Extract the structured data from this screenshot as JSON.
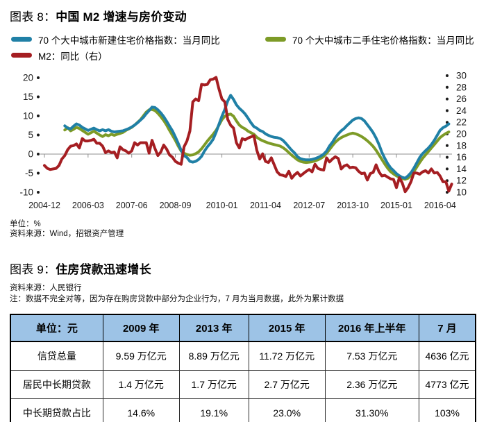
{
  "fig8": {
    "label": "图表 8：",
    "title": "中国 M2 增速与房价变动",
    "unit_note": "单位：%",
    "source_note": "资料来源：Wind，招银资产管理"
  },
  "fig9": {
    "label": "图表 9：",
    "title": "住房贷款迅速增长",
    "source_note": "资料来源：人民银行",
    "data_note": "注：数据不完全对等，因为存在购房贷款中部分为企业行为，7 月为当月数据，此外为累计数据"
  },
  "chart_data": [
    {
      "type": "line",
      "title": "中国 M2 增速与房价变动",
      "unit": "%",
      "grid": "zero-line-only",
      "x_tick_labels": [
        "2004-12",
        "2006-03",
        "2007-06",
        "2008-09",
        "2010-01",
        "2011-04",
        "2012-07",
        "2013-10",
        "2015-01",
        "2016-04"
      ],
      "left_axis": {
        "ticks": [
          20,
          15,
          10,
          5,
          0,
          -5,
          -10
        ],
        "range": [
          -10,
          20
        ]
      },
      "right_axis": {
        "ticks": [
          30,
          28,
          26,
          24,
          22,
          20,
          18,
          16,
          14,
          12,
          10
        ],
        "range": [
          10,
          30
        ]
      },
      "series": [
        {
          "name": "70 个大中城市新建住宅价格指数：当月同比",
          "color": "#2080A6",
          "axis": "left",
          "start_month": "2005-07",
          "monthly_values": [
            7.4,
            6.8,
            6.6,
            7.3,
            7.9,
            7.6,
            7.0,
            6.6,
            6.2,
            6.5,
            6.8,
            6.4,
            6.1,
            6.4,
            6.1,
            6.4,
            6.0,
            5.8,
            5.9,
            6.0,
            6.1,
            6.4,
            6.7,
            7.1,
            7.6,
            8.2,
            8.9,
            9.6,
            10.6,
            11.4,
            12.3,
            12.2,
            11.6,
            10.8,
            9.8,
            8.6,
            7.3,
            6.1,
            4.5,
            2.8,
            1.0,
            -0.4,
            -0.9,
            -1.9,
            -2.1,
            -1.9,
            -1.4,
            -0.6,
            0.8,
            1.9,
            2.8,
            3.9,
            5.7,
            7.8,
            9.9,
            11.7,
            13.9,
            15.4,
            14.3,
            12.9,
            12.0,
            11.3,
            10.5,
            9.4,
            8.2,
            7.2,
            6.8,
            6.2,
            5.9,
            5.3,
            4.9,
            4.6,
            4.4,
            4.3,
            4.1,
            3.6,
            2.8,
            1.9,
            1.0,
            0.3,
            -0.7,
            -1.2,
            -1.4,
            -1.5,
            -1.5,
            -1.4,
            -1.2,
            -0.9,
            -0.5,
            0.0,
            0.8,
            2.1,
            3.1,
            4.3,
            5.3,
            6.1,
            6.7,
            7.5,
            8.2,
            8.9,
            9.3,
            9.5,
            9.3,
            8.7,
            7.7,
            6.7,
            5.6,
            4.2,
            2.5,
            0.5,
            -1.1,
            -2.5,
            -3.6,
            -4.3,
            -5.1,
            -5.7,
            -6.1,
            -6.3,
            -5.7,
            -4.9,
            -3.7,
            -2.3,
            -0.9,
            0.1,
            0.9,
            1.6,
            2.5,
            3.6,
            4.9,
            6.2,
            6.9,
            7.3,
            7.9
          ]
        },
        {
          "name": "70 个大中城市二手住宅价格指数：当月同比",
          "color": "#7D9B27",
          "axis": "left",
          "start_month": "2005-07",
          "monthly_values": [
            6.3,
            6.9,
            6.1,
            6.5,
            7.0,
            6.7,
            6.2,
            5.7,
            5.2,
            5.6,
            6.0,
            5.5,
            5.0,
            4.6,
            5.1,
            4.8,
            5.2,
            4.9,
            5.2,
            5.4,
            5.7,
            6.2,
            6.6,
            7.0,
            7.6,
            8.3,
            9.0,
            10.0,
            11.0,
            11.6,
            11.7,
            11.4,
            10.7,
            9.8,
            8.8,
            7.6,
            6.2,
            4.9,
            3.6,
            2.1,
            0.8,
            0.2,
            -0.1,
            -0.3,
            -0.2,
            0.1,
            0.6,
            1.4,
            2.4,
            3.4,
            4.3,
            5.2,
            6.2,
            7.6,
            9.0,
            9.9,
            10.3,
            10.5,
            9.9,
            8.7,
            7.6,
            7.0,
            6.6,
            6.0,
            5.6,
            5.2,
            4.4,
            3.9,
            3.5,
            3.2,
            2.9,
            2.7,
            2.5,
            2.3,
            2.1,
            1.7,
            1.1,
            0.4,
            -0.3,
            -0.9,
            -1.5,
            -1.9,
            -2.1,
            -2.2,
            -2.1,
            -2.0,
            -1.8,
            -1.5,
            -1.1,
            -0.6,
            0.2,
            1.2,
            2.2,
            3.1,
            3.8,
            4.3,
            4.7,
            5.0,
            5.3,
            5.5,
            5.3,
            5.0,
            4.6,
            4.1,
            3.5,
            2.8,
            2.0,
            1.0,
            -0.2,
            -1.4,
            -2.6,
            -3.7,
            -4.6,
            -5.2,
            -5.7,
            -6.1,
            -6.4,
            -6.6,
            -6.3,
            -5.6,
            -4.6,
            -3.4,
            -2.2,
            -1.1,
            -0.2,
            0.7,
            1.6,
            2.5,
            3.4,
            4.3,
            4.9,
            5.4,
            5.8
          ]
        },
        {
          "name": "M2：同比（右）",
          "color": "#A51E22",
          "axis": "right",
          "start_month": "2004-12",
          "monthly_values": [
            14.6,
            14.1,
            13.9,
            14.0,
            14.1,
            14.6,
            15.7,
            16.3,
            17.3,
            17.9,
            18.0,
            18.3,
            17.6,
            19.2,
            18.8,
            18.8,
            18.9,
            19.1,
            18.4,
            18.4,
            17.9,
            16.8,
            17.1,
            16.8,
            16.9,
            15.9,
            17.8,
            17.3,
            17.1,
            16.7,
            17.1,
            18.5,
            18.1,
            18.5,
            18.5,
            18.5,
            16.7,
            18.9,
            17.5,
            16.3,
            16.9,
            18.1,
            17.4,
            16.4,
            16.0,
            15.3,
            15.0,
            14.8,
            17.8,
            18.8,
            20.5,
            25.5,
            26.0,
            25.7,
            28.5,
            28.4,
            28.5,
            29.3,
            29.4,
            29.7,
            27.7,
            26.0,
            25.5,
            22.5,
            21.5,
            21.0,
            18.5,
            17.6,
            19.2,
            19.0,
            19.3,
            19.5,
            19.7,
            17.2,
            15.7,
            16.6,
            15.3,
            15.1,
            15.9,
            14.7,
            13.5,
            13.0,
            12.9,
            12.7,
            13.6,
            12.4,
            13.0,
            13.4,
            12.8,
            13.2,
            13.6,
            13.9,
            13.5,
            14.8,
            14.1,
            13.9,
            13.8,
            15.9,
            15.2,
            15.7,
            16.1,
            15.8,
            14.0,
            14.5,
            14.7,
            14.2,
            14.3,
            14.2,
            13.6,
            13.2,
            13.3,
            12.1,
            13.2,
            13.4,
            14.7,
            13.5,
            12.8,
            12.9,
            12.6,
            12.3,
            12.2,
            10.8,
            12.5,
            11.6,
            10.1,
            10.8,
            11.8,
            13.3,
            13.3,
            13.1,
            13.5,
            13.7,
            13.3,
            14.0,
            13.3,
            13.4,
            12.8,
            11.8,
            11.8,
            10.2,
            11.4
          ]
        }
      ]
    },
    {
      "type": "table",
      "title": "住房贷款迅速增长",
      "columns": [
        "单位：元",
        "2009 年",
        "2013 年",
        "2015 年",
        "2016 年上半年",
        "7 月"
      ],
      "rows": [
        [
          "信贷总量",
          "9.59 万亿元",
          "8.89 万亿元",
          "11.72 万亿元",
          "7.53 万亿元",
          "4636 亿元"
        ],
        [
          "居民中长期贷款",
          "1.4 万亿元",
          "1.7 万亿元",
          "2.7 万亿元",
          "2.36 万亿元",
          "4773 亿元"
        ],
        [
          "中长期贷款占比",
          "14.6%",
          "19.1%",
          "23.0%",
          "31.30%",
          "103%"
        ]
      ]
    }
  ]
}
